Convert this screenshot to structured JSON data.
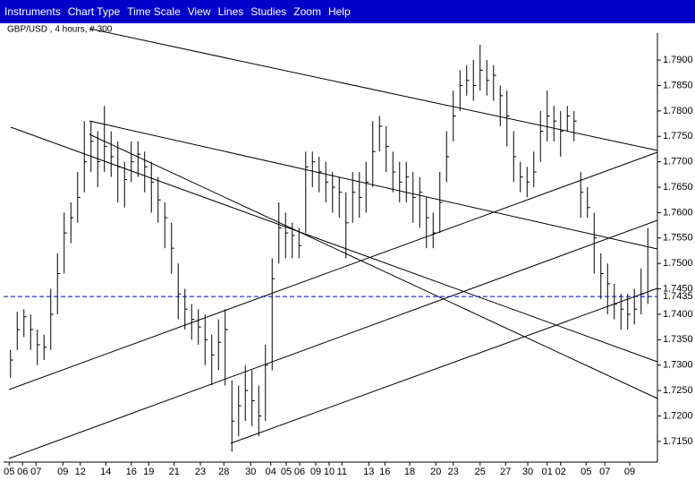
{
  "menu": [
    "Instruments",
    "Chart Type",
    "Time Scale",
    "View",
    "Lines",
    "Studies",
    "Zoom",
    "Help"
  ],
  "chart_data": {
    "type": "ohlc",
    "title": "GBP/USD , 4 hours, # 300",
    "color": "#000000",
    "current_price": 1.7435,
    "current_color": "#0000cc",
    "ylim": [
      1.7111,
      1.7953
    ],
    "yticks": [
      {
        "value": 1.715,
        "label": "1.7150"
      },
      {
        "value": 1.72,
        "label": "1.7200"
      },
      {
        "value": 1.725,
        "label": "1.7250"
      },
      {
        "value": 1.73,
        "label": "1.7300"
      },
      {
        "value": 1.735,
        "label": "1.7350"
      },
      {
        "value": 1.74,
        "label": "1.7400"
      },
      {
        "value": 1.745,
        "label": "1.7450"
      },
      {
        "value": 1.75,
        "label": "1.7500"
      },
      {
        "value": 1.755,
        "label": "1.7550"
      },
      {
        "value": 1.76,
        "label": "1.7600"
      },
      {
        "value": 1.765,
        "label": "1.7650"
      },
      {
        "value": 1.77,
        "label": "1.7700"
      },
      {
        "value": 1.775,
        "label": "1.7750"
      },
      {
        "value": 1.78,
        "label": "1.7800"
      },
      {
        "value": 1.785,
        "label": "1.7850"
      },
      {
        "value": 1.79,
        "label": "1.7900"
      }
    ],
    "xlim": [
      0,
      96
    ],
    "xticks": [
      {
        "value": 0.3,
        "label": "05"
      },
      {
        "value": 2.3,
        "label": "06"
      },
      {
        "value": 4.3,
        "label": "07"
      },
      {
        "value": 8.3,
        "label": "09"
      },
      {
        "value": 10.9,
        "label": "12"
      },
      {
        "value": 14.7,
        "label": "14"
      },
      {
        "value": 18.5,
        "label": "16"
      },
      {
        "value": 21.1,
        "label": "19"
      },
      {
        "value": 24.9,
        "label": "21"
      },
      {
        "value": 28.8,
        "label": "23"
      },
      {
        "value": 32.3,
        "label": "28"
      },
      {
        "value": 36.3,
        "label": "30"
      },
      {
        "value": 39.3,
        "label": "04"
      },
      {
        "value": 41.6,
        "label": "05"
      },
      {
        "value": 43.6,
        "label": "06"
      },
      {
        "value": 46,
        "label": "09"
      },
      {
        "value": 48,
        "label": "10"
      },
      {
        "value": 49.9,
        "label": "11"
      },
      {
        "value": 53.9,
        "label": "13"
      },
      {
        "value": 56.3,
        "label": "16"
      },
      {
        "value": 60,
        "label": "18"
      },
      {
        "value": 63.9,
        "label": "20"
      },
      {
        "value": 66.5,
        "label": "23"
      },
      {
        "value": 70.5,
        "label": "25"
      },
      {
        "value": 74.3,
        "label": "27"
      },
      {
        "value": 77.6,
        "label": "30"
      },
      {
        "value": 80.5,
        "label": "01"
      },
      {
        "value": 82.5,
        "label": "02"
      },
      {
        "value": 86.3,
        "label": "05"
      },
      {
        "value": 89.1,
        "label": "07"
      },
      {
        "value": 92.8,
        "label": "09"
      }
    ],
    "high": [
      1.733,
      1.7405,
      1.741,
      1.74,
      1.737,
      1.736,
      1.745,
      1.752,
      1.76,
      1.762,
      1.768,
      1.778,
      1.778,
      1.776,
      1.781,
      1.776,
      1.774,
      1.77,
      1.774,
      1.774,
      1.772,
      1.77,
      1.767,
      1.762,
      1.758,
      1.75,
      1.745,
      1.742,
      1.741,
      1.74,
      1.736,
      1.739,
      1.741,
      1.727,
      1.726,
      1.73,
      1.729,
      1.726,
      1.734,
      1.751,
      1.762,
      1.76,
      1.758,
      1.757,
      1.772,
      1.772,
      1.771,
      1.77,
      1.768,
      1.767,
      1.764,
      1.768,
      1.768,
      1.77,
      1.778,
      1.779,
      1.777,
      1.772,
      1.77,
      1.77,
      1.768,
      1.767,
      1.763,
      1.76,
      1.768,
      1.776,
      1.784,
      1.788,
      1.789,
      1.79,
      1.793,
      1.79,
      1.789,
      1.785,
      1.784,
      1.776,
      1.77,
      1.769,
      1.772,
      1.78,
      1.784,
      1.781,
      1.78,
      1.781,
      1.78,
      1.768,
      1.765,
      1.76,
      1.752,
      1.75,
      1.746,
      1.744,
      1.744,
      1.745,
      1.749,
      1.757
    ],
    "low": [
      1.7275,
      1.733,
      1.7355,
      1.733,
      1.73,
      1.731,
      1.733,
      1.74,
      1.748,
      1.754,
      1.758,
      1.764,
      1.768,
      1.765,
      1.768,
      1.767,
      1.762,
      1.761,
      1.766,
      1.767,
      1.764,
      1.76,
      1.758,
      1.753,
      1.748,
      1.739,
      1.737,
      1.735,
      1.734,
      1.73,
      1.726,
      1.729,
      1.726,
      1.713,
      1.716,
      1.719,
      1.718,
      1.716,
      1.719,
      1.729,
      1.75,
      1.751,
      1.751,
      1.751,
      1.756,
      1.765,
      1.764,
      1.762,
      1.76,
      1.759,
      1.751,
      1.758,
      1.759,
      1.76,
      1.765,
      1.772,
      1.768,
      1.764,
      1.762,
      1.762,
      1.758,
      1.757,
      1.753,
      1.753,
      1.756,
      1.766,
      1.774,
      1.78,
      1.783,
      1.782,
      1.784,
      1.783,
      1.782,
      1.777,
      1.773,
      1.766,
      1.764,
      1.763,
      1.765,
      1.77,
      1.774,
      1.774,
      1.771,
      1.776,
      1.774,
      1.759,
      1.759,
      1.748,
      1.743,
      1.74,
      1.739,
      1.737,
      1.737,
      1.738,
      1.74,
      1.742
    ],
    "close": [
      1.731,
      1.737,
      1.7395,
      1.737,
      1.734,
      1.7335,
      1.74,
      1.748,
      1.756,
      1.759,
      1.763,
      1.77,
      1.774,
      1.77,
      1.773,
      1.771,
      1.769,
      1.7665,
      1.77,
      1.7715,
      1.769,
      1.766,
      1.7625,
      1.759,
      1.753,
      1.744,
      1.741,
      1.739,
      1.7375,
      1.735,
      1.732,
      1.7345,
      1.737,
      1.719,
      1.722,
      1.725,
      1.723,
      1.72,
      1.73,
      1.747,
      1.757,
      1.756,
      1.7555,
      1.7535,
      1.769,
      1.77,
      1.768,
      1.766,
      1.765,
      1.764,
      1.758,
      1.764,
      1.763,
      1.766,
      1.772,
      1.777,
      1.773,
      1.768,
      1.766,
      1.767,
      1.763,
      1.764,
      1.759,
      1.756,
      1.762,
      1.771,
      1.779,
      1.785,
      1.786,
      1.785,
      1.788,
      1.786,
      1.787,
      1.783,
      1.779,
      1.771,
      1.767,
      1.766,
      1.768,
      1.776,
      1.779,
      1.778,
      1.776,
      1.779,
      1.778,
      1.764,
      1.761,
      1.755,
      1.748,
      1.746,
      1.742,
      1.741,
      1.74,
      1.741,
      1.744,
      1.7435
    ]
  }
}
